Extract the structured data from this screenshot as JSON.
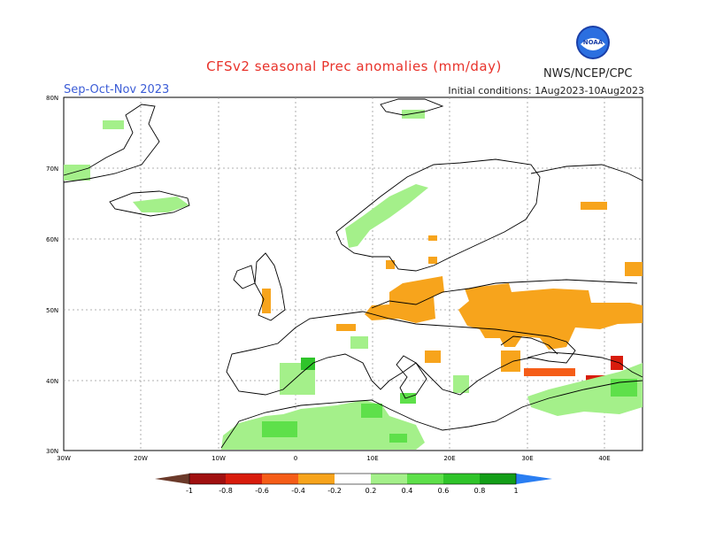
{
  "header": {
    "title": "CFSv2 seasonal Prec anomalies (mm/day)",
    "season": "Sep-Oct-Nov 2023",
    "initial_conditions": "Initial conditions: 1Aug2023-10Aug2023",
    "agency": "NWS/NCEP/CPC",
    "logo_text": "NOAA"
  },
  "map": {
    "lat_labels": [
      "80N",
      "70N",
      "60N",
      "50N",
      "40N",
      "30N"
    ],
    "lon_labels": [
      "30W",
      "20W",
      "10W",
      "0",
      "10E",
      "20E",
      "30E",
      "40E"
    ],
    "extent": {
      "lon": [
        -30,
        45
      ],
      "lat": [
        30,
        80
      ]
    }
  },
  "legend": {
    "labels": [
      "-1",
      "-0.8",
      "-0.6",
      "-0.4",
      "-0.2",
      "0.2",
      "0.4",
      "0.6",
      "0.8",
      "1"
    ],
    "colors": [
      "#6b3a2a",
      "#a01010",
      "#d81c0c",
      "#f55d18",
      "#f7a41c",
      "#ffffff",
      "#a4f08a",
      "#5ee04a",
      "#2fc42a",
      "#139e18",
      "#2a7ef2"
    ]
  },
  "colors": {
    "dry": "#f7a41c",
    "dry_strong": "#f55d18",
    "dry_very_strong": "#d81c0c",
    "wet": "#a4f08a",
    "wet_mod": "#5ee04a",
    "wet_strong": "#2fc42a"
  }
}
